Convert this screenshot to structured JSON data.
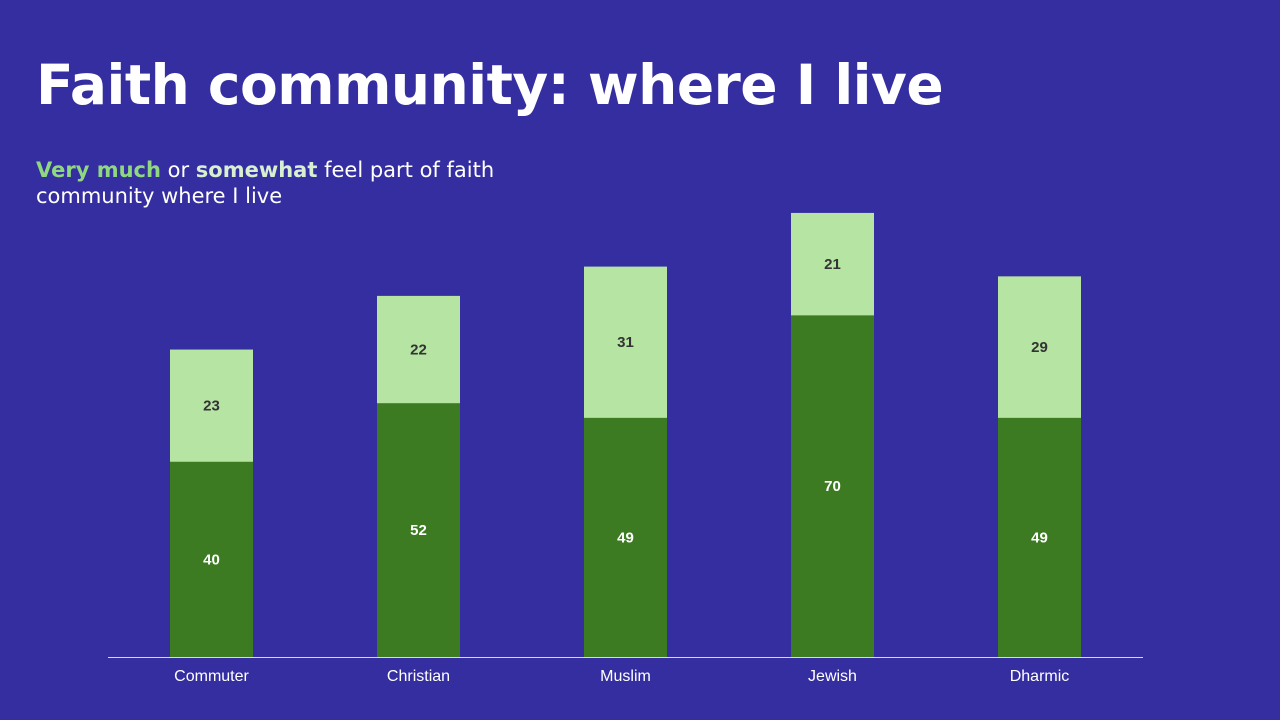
{
  "slide": {
    "title": "Faith community: where I live",
    "subtitle": {
      "very_much": "Very much",
      "or": " or ",
      "somewhat": "somewhat",
      "rest": " feel part of faith community where I live"
    }
  },
  "colors": {
    "background": "#352ea0",
    "very_much": "#3c7b21",
    "somewhat": "#b6e4a3",
    "very_much_label": "#ffffff",
    "somewhat_label": "#333333",
    "axis": "#d8d8e8",
    "tick_label": "#ffffff"
  },
  "chart_data": {
    "type": "bar",
    "stacked": true,
    "categories": [
      "Commuter",
      "Christian",
      "Muslim",
      "Jewish",
      "Dharmic"
    ],
    "series": [
      {
        "name": "Very much",
        "values": [
          40,
          52,
          49,
          70,
          49
        ]
      },
      {
        "name": "Somewhat",
        "values": [
          23,
          22,
          31,
          21,
          29
        ]
      }
    ],
    "ylim": [
      0,
      100
    ],
    "grid": false,
    "legend": "none",
    "data_labels": true
  }
}
